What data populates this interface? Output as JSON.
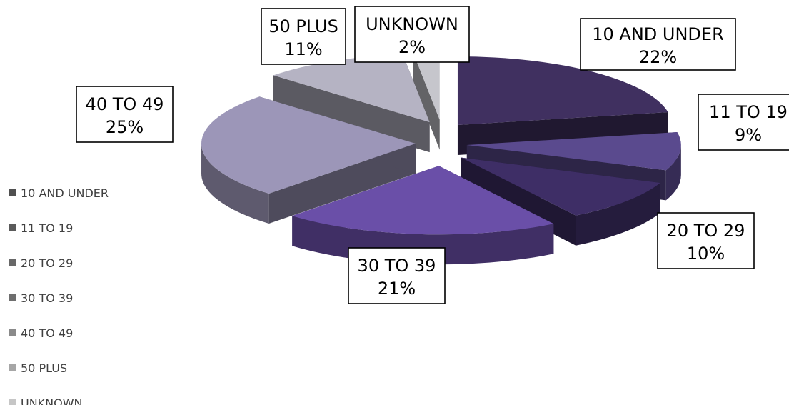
{
  "chart_data": {
    "type": "pie",
    "title": "",
    "categories": [
      "10 AND UNDER",
      "11 TO 19",
      "20 TO 29",
      "30 TO 39",
      "40 TO 49",
      "50 PLUS",
      "UNKNOWN"
    ],
    "values": [
      22,
      9,
      10,
      21,
      25,
      11,
      2
    ],
    "unit": "%",
    "data_labels": [
      {
        "category": "10 AND UNDER",
        "value": "22%"
      },
      {
        "category": "11 TO 19",
        "value": "9%"
      },
      {
        "category": "20 TO 29",
        "value": "10%"
      },
      {
        "category": "30 TO 39",
        "value": "21%"
      },
      {
        "category": "40 TO 49",
        "value": "25%"
      },
      {
        "category": "50 PLUS",
        "value": "11%"
      },
      {
        "category": "UNKNOWN",
        "value": "2%"
      }
    ],
    "colors": [
      "#403060",
      "#5a4a8e",
      "#3e2e66",
      "#6a4fa8",
      "#9c96b8",
      "#b5b3c3",
      "#c6c6cc"
    ],
    "legend_colors": [
      "#505050",
      "#5a5a5a",
      "#686868",
      "#6e6e6e",
      "#8a8a8a",
      "#a6a6a6",
      "#c6c6c6"
    ],
    "style": "exploded-3d",
    "legend": {
      "position": "left",
      "items": [
        "10 AND UNDER",
        "11 TO 19",
        "20 TO 29",
        "30 TO 39",
        "40 TO 49",
        "50 PLUS",
        "UNKNOWN"
      ]
    }
  }
}
